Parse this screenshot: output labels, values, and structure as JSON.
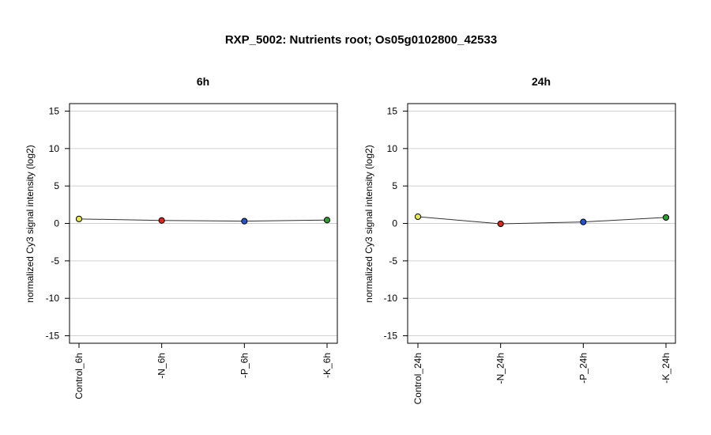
{
  "title": "RXP_5002: Nutrients root; Os05g0102800_42533",
  "chart_data": [
    {
      "type": "line",
      "title": "6h",
      "ylabel": "normalized Cy3 signal intensity (log2)",
      "xlabel": "",
      "ylim": [
        -16,
        16
      ],
      "yticks": [
        -15,
        -10,
        -5,
        0,
        5,
        10,
        15
      ],
      "grid": true,
      "categories": [
        "Control_6h",
        "-N_6h",
        "-P_6h",
        "-K_6h"
      ],
      "values": [
        0.6,
        0.4,
        0.3,
        0.45
      ],
      "point_colors": [
        "#e8e84a",
        "#d9281e",
        "#2255cc",
        "#2f9e2f"
      ]
    },
    {
      "type": "line",
      "title": "24h",
      "ylabel": "normalized Cy3 signal intensity (log2)",
      "xlabel": "",
      "ylim": [
        -16,
        16
      ],
      "yticks": [
        -15,
        -10,
        -5,
        0,
        5,
        10,
        15
      ],
      "grid": true,
      "categories": [
        "Control_24h",
        "-N_24h",
        "-P_24h",
        "-K_24h"
      ],
      "values": [
        0.9,
        -0.05,
        0.2,
        0.8
      ],
      "point_colors": [
        "#e8e84a",
        "#d9281e",
        "#2255cc",
        "#2f9e2f"
      ]
    }
  ]
}
